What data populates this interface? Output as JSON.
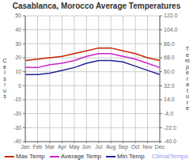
{
  "chart_data": {
    "type": "line",
    "title": "Casablanca, Morocco Average Temperatures",
    "categories": [
      "Jan",
      "Feb",
      "Mar",
      "Apr",
      "May",
      "Jun",
      "Jul",
      "Aug",
      "Sep",
      "Oct",
      "Nov",
      "Dec"
    ],
    "series": [
      {
        "name": "Max Temp",
        "color": "#cc2200",
        "values": [
          18,
          19,
          20,
          21,
          23,
          25,
          27,
          27,
          25,
          23,
          20,
          18
        ]
      },
      {
        "name": "Average Temp",
        "color": "#cc22cc",
        "values": [
          13,
          13,
          15,
          16,
          18,
          21,
          23,
          23,
          21,
          19,
          16,
          13
        ]
      },
      {
        "name": "Min Temp",
        "color": "#222299",
        "values": [
          8,
          8,
          9,
          11,
          13,
          16,
          18,
          18,
          17,
          14,
          11,
          8
        ]
      }
    ],
    "ylim": [
      -40,
      50
    ],
    "yticks": [
      50,
      40,
      30,
      20,
      10,
      0,
      -10,
      -20,
      -30,
      -40
    ],
    "y2lim": [
      -40.0,
      122.0
    ],
    "y2ticks": [
      {
        "value": 122.0,
        "label": "122.0"
      },
      {
        "value": 104.0,
        "label": "104.0"
      },
      {
        "value": 86.0,
        "label": "86.0"
      },
      {
        "value": 68.0,
        "label": "68.0"
      },
      {
        "value": 50.0,
        "label": "50.0"
      },
      {
        "value": 32.0,
        "label": "32.0"
      },
      {
        "value": 14.0,
        "label": "14.0"
      },
      {
        "value": -4.0,
        "label": "-4.0"
      },
      {
        "value": -22.0,
        "label": "-22.0"
      },
      {
        "value": -40.0,
        "label": "-40.0"
      }
    ],
    "y_label": "C\ne\nl\ns\ni\nu\ns",
    "y2_label": "T\ne\nm\np\ne\nr\na\nt\nu\nr\ne",
    "annotations": [
      "ClimatTemps"
    ],
    "grid": true,
    "legend": "bottom"
  }
}
